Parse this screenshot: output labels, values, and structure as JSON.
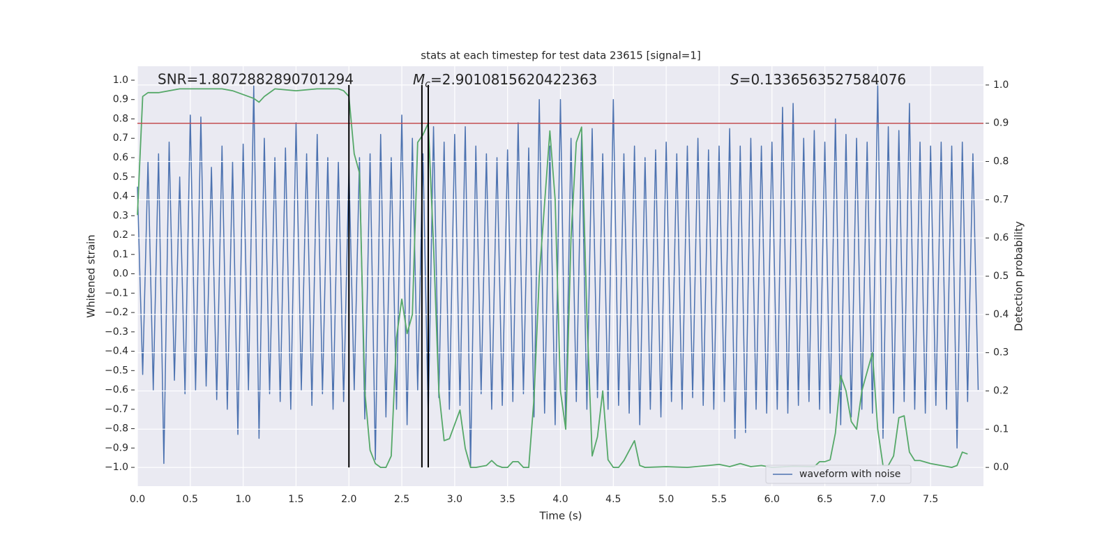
{
  "chart_data": {
    "type": "line",
    "title": "stats at each timestep for test data 23615 [signal=1]",
    "x_label": "Time (s)",
    "y_label": "Whitened strain",
    "y2_label": "Detection probability",
    "annotations": [
      {
        "text": "SNR=1.8072882890701294"
      },
      {
        "symbol": "M",
        "subscript": "c",
        "text": "=2.9010815620422363"
      },
      {
        "symbol": "S",
        "text": "=0.1336563527584076"
      }
    ],
    "xlim": [
      0,
      8
    ],
    "ylim": [
      -1.097,
      1.072
    ],
    "y2lim": [
      -0.049,
      1.049
    ],
    "xticks": [
      {
        "value": 0,
        "label": "0.0"
      },
      0.5,
      {
        "value": 1,
        "label": "1.0"
      },
      1.5,
      {
        "value": 2,
        "label": "2.0"
      },
      2.5,
      {
        "value": 3,
        "label": "3.0"
      },
      3.5,
      {
        "value": 4,
        "label": "4.0"
      },
      4.5,
      {
        "value": 5,
        "label": "5.0"
      },
      5.5,
      {
        "value": 6,
        "label": "6.0"
      },
      6.5,
      {
        "value": 7,
        "label": "7.0"
      },
      7.5
    ],
    "yticks": [
      {
        "value": -1.0,
        "label": "−1.0"
      },
      {
        "value": -0.9,
        "label": "−0.9"
      },
      {
        "value": -0.8,
        "label": "−0.8"
      },
      {
        "value": -0.7,
        "label": "−0.7"
      },
      {
        "value": -0.6,
        "label": "−0.6"
      },
      {
        "value": -0.5,
        "label": "−0.5"
      },
      {
        "value": -0.4,
        "label": "−0.4"
      },
      {
        "value": -0.3,
        "label": "−0.3"
      },
      {
        "value": -0.2,
        "label": "−0.2"
      },
      {
        "value": -0.1,
        "label": "−0.1"
      },
      {
        "value": 0,
        "label": "0.0"
      },
      0.1,
      0.2,
      0.3,
      0.4,
      0.5,
      0.6,
      0.7,
      0.8,
      0.9,
      {
        "value": 1,
        "label": "1.0"
      }
    ],
    "y2ticks": [
      {
        "value": 0,
        "label": "0.0"
      },
      0.1,
      0.2,
      0.3,
      0.4,
      0.5,
      0.6,
      0.7,
      0.8,
      0.9,
      {
        "value": 1,
        "label": "1.0"
      }
    ],
    "grid": true,
    "legend": "lower right",
    "series": [
      {
        "name": "waveform with noise",
        "color": "#4c72b0",
        "x": [
          0,
          0.05,
          0.1,
          0.15,
          0.2,
          0.25,
          0.3,
          0.35,
          0.4,
          0.45,
          0.5,
          0.55,
          0.6,
          0.65,
          0.7,
          0.75,
          0.8,
          0.85,
          0.9,
          0.95,
          1,
          1.05,
          1.1,
          1.15,
          1.2,
          1.25,
          1.3,
          1.35,
          1.4,
          1.45,
          1.5,
          1.55,
          1.6,
          1.65,
          1.7,
          1.75,
          1.8,
          1.85,
          1.9,
          1.95,
          2,
          2.05,
          2.1,
          2.15,
          2.2,
          2.25,
          2.3,
          2.35,
          2.4,
          2.45,
          2.5,
          2.55,
          2.6,
          2.65,
          2.7,
          2.75,
          2.8,
          2.85,
          2.9,
          2.95,
          3,
          3.05,
          3.1,
          3.15,
          3.2,
          3.25,
          3.3,
          3.35,
          3.4,
          3.45,
          3.5,
          3.55,
          3.6,
          3.65,
          3.7,
          3.75,
          3.8,
          3.85,
          3.9,
          3.95,
          4,
          4.05,
          4.1,
          4.15,
          4.2,
          4.25,
          4.3,
          4.35,
          4.4,
          4.45,
          4.5,
          4.55,
          4.6,
          4.65,
          4.7,
          4.75,
          4.8,
          4.85,
          4.9,
          4.95,
          5,
          5.05,
          5.1,
          5.15,
          5.2,
          5.25,
          5.3,
          5.35,
          5.4,
          5.45,
          5.5,
          5.55,
          5.6,
          5.65,
          5.7,
          5.75,
          5.8,
          5.85,
          5.9,
          5.95,
          6,
          6.05,
          6.1,
          6.15,
          6.2,
          6.25,
          6.3,
          6.35,
          6.4,
          6.45,
          6.5,
          6.55,
          6.6,
          6.65,
          6.7,
          6.75,
          6.8,
          6.85,
          6.9,
          6.95,
          7,
          7.05,
          7.1,
          7.15,
          7.2,
          7.25,
          7.3,
          7.35,
          7.4,
          7.45,
          7.5,
          7.55,
          7.6,
          7.65,
          7.7,
          7.75,
          7.8,
          7.85,
          7.9,
          7.95
        ],
        "values": [
          0.45,
          -0.52,
          0.58,
          -0.6,
          0.62,
          -0.98,
          0.68,
          -0.55,
          0.5,
          -0.62,
          0.82,
          -0.6,
          0.81,
          -0.58,
          0.55,
          -0.65,
          0.66,
          -0.7,
          0.58,
          -0.83,
          0.67,
          -0.6,
          0.97,
          -0.85,
          0.7,
          -0.62,
          0.6,
          -0.66,
          0.65,
          -0.7,
          0.78,
          -0.6,
          0.62,
          -0.68,
          0.72,
          -0.62,
          0.6,
          -0.7,
          0.58,
          -0.66,
          0.55,
          -0.6,
          0.6,
          -0.75,
          0.62,
          -0.96,
          0.72,
          -0.74,
          0.6,
          -0.7,
          0.82,
          -0.78,
          0.7,
          -0.6,
          0.62,
          -0.74,
          0.76,
          -0.64,
          0.68,
          -0.7,
          0.72,
          -0.68,
          0.76,
          -1.0,
          0.66,
          -0.62,
          0.62,
          -0.7,
          0.6,
          -0.68,
          0.64,
          -0.66,
          0.78,
          -0.62,
          0.65,
          -0.74,
          0.9,
          -0.72,
          0.66,
          -0.78,
          0.9,
          -0.8,
          0.7,
          -0.66,
          0.72,
          -0.7,
          0.75,
          -0.64,
          0.62,
          -0.7,
          0.9,
          -0.68,
          0.62,
          -0.72,
          0.66,
          -0.78,
          0.6,
          -0.7,
          0.64,
          -0.74,
          0.68,
          -0.66,
          0.62,
          -0.7,
          0.66,
          -0.64,
          0.7,
          -0.68,
          0.64,
          -0.7,
          0.66,
          -0.66,
          0.75,
          -0.85,
          0.66,
          -0.82,
          0.7,
          -0.7,
          0.66,
          -0.72,
          0.68,
          -0.7,
          0.86,
          -0.72,
          0.88,
          -0.68,
          0.7,
          -0.66,
          0.74,
          -0.7,
          0.68,
          -0.72,
          0.8,
          -0.78,
          0.72,
          -0.74,
          0.7,
          -0.7,
          0.68,
          -0.72,
          0.98,
          -0.85,
          0.76,
          -0.72,
          0.74,
          -0.66,
          0.88,
          -0.7,
          0.68,
          -0.72,
          0.66,
          -0.68,
          0.68,
          -0.7,
          0.66,
          -0.9,
          0.68,
          -0.66,
          0.62,
          -0.6
        ]
      },
      {
        "color": "#55a868",
        "axis": "y2",
        "x": [
          0,
          0.05,
          0.1,
          0.2,
          0.4,
          0.6,
          0.8,
          0.9,
          1.0,
          1.1,
          1.15,
          1.2,
          1.3,
          1.5,
          1.7,
          1.9,
          1.95,
          2.0,
          2.05,
          2.1,
          2.15,
          2.2,
          2.25,
          2.3,
          2.35,
          2.4,
          2.45,
          2.5,
          2.55,
          2.6,
          2.65,
          2.7,
          2.75,
          2.8,
          2.85,
          2.9,
          2.95,
          3.05,
          3.1,
          3.15,
          3.2,
          3.3,
          3.35,
          3.4,
          3.45,
          3.5,
          3.55,
          3.6,
          3.65,
          3.7,
          3.75,
          3.8,
          3.9,
          3.95,
          4.0,
          4.05,
          4.1,
          4.15,
          4.2,
          4.25,
          4.3,
          4.35,
          4.4,
          4.45,
          4.5,
          4.55,
          4.6,
          4.7,
          4.75,
          4.8,
          5.0,
          5.2,
          5.4,
          5.5,
          5.6,
          5.7,
          5.8,
          5.9,
          6.0,
          6.2,
          6.4,
          6.45,
          6.5,
          6.55,
          6.6,
          6.65,
          6.7,
          6.75,
          6.8,
          6.85,
          6.95,
          7.0,
          7.05,
          7.1,
          7.15,
          7.2,
          7.25,
          7.3,
          7.35,
          7.4,
          7.5,
          7.6,
          7.7,
          7.75,
          7.8,
          7.85
        ],
        "values": [
          0.66,
          0.97,
          0.98,
          0.98,
          0.99,
          0.99,
          0.99,
          0.985,
          0.975,
          0.965,
          0.955,
          0.97,
          0.99,
          0.985,
          0.99,
          0.99,
          0.985,
          0.97,
          0.82,
          0.77,
          0.2,
          0.045,
          0.01,
          0.0,
          0.0,
          0.03,
          0.34,
          0.44,
          0.35,
          0.4,
          0.85,
          0.87,
          0.9,
          0.58,
          0.2,
          0.07,
          0.075,
          0.15,
          0.05,
          0.0,
          0.0,
          0.005,
          0.018,
          0.005,
          0.0,
          0.0,
          0.015,
          0.015,
          0.0,
          0.0,
          0.18,
          0.5,
          0.88,
          0.7,
          0.2,
          0.1,
          0.6,
          0.85,
          0.89,
          0.4,
          0.03,
          0.08,
          0.2,
          0.02,
          0.0,
          0.0,
          0.018,
          0.07,
          0.005,
          0.0,
          0.002,
          0.0,
          0.005,
          0.008,
          0.002,
          0.01,
          0.002,
          0.005,
          0.0,
          0.003,
          0.002,
          0.015,
          0.015,
          0.02,
          0.09,
          0.24,
          0.2,
          0.12,
          0.1,
          0.2,
          0.3,
          0.1,
          0.005,
          0.005,
          0.03,
          0.13,
          0.135,
          0.04,
          0.018,
          0.018,
          0.01,
          0.005,
          0.0,
          0.005,
          0.04,
          0.035
        ]
      }
    ],
    "threshold": {
      "value": 0.9,
      "axis": "y2",
      "color": "#c44e52"
    },
    "vlines": {
      "x": [
        2.0,
        2.69,
        2.75
      ],
      "from": 0,
      "to": 1,
      "axis": "y2",
      "color": "#000000"
    }
  }
}
